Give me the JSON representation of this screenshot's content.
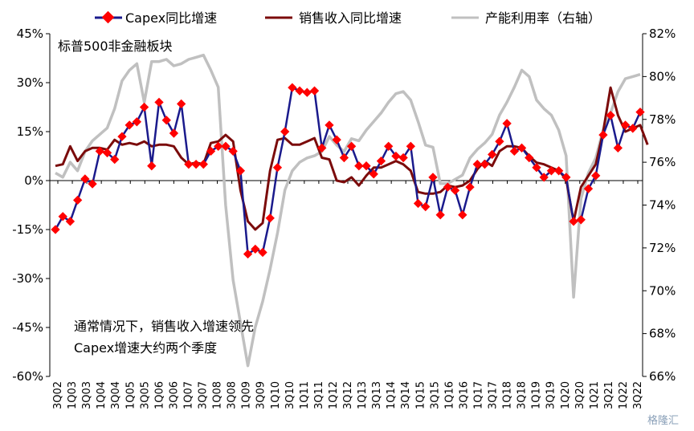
{
  "chart_data": {
    "type": "line",
    "title": "",
    "subtitle": "标普500非金融板块",
    "annotation": [
      "通常情况下，销售收入增速领先",
      "Capex增速大约两个季度"
    ],
    "watermark": "格隆汇",
    "x_tick_labels": [
      "3Q02",
      "1Q03",
      "3Q03",
      "1Q04",
      "3Q04",
      "1Q05",
      "3Q05",
      "1Q06",
      "3Q06",
      "1Q07",
      "3Q07",
      "1Q08",
      "3Q08",
      "1Q09",
      "3Q09",
      "1Q10",
      "3Q10",
      "1Q11",
      "3Q11",
      "1Q12",
      "3Q12",
      "1Q13",
      "3Q13",
      "1Q14",
      "3Q14",
      "1Q15",
      "3Q15",
      "1Q16",
      "3Q16",
      "1Q17",
      "3Q17",
      "1Q18",
      "3Q18",
      "1Q19",
      "3Q19",
      "1Q20",
      "3Q20",
      "1Q21",
      "3Q21",
      "1Q22",
      "3Q22"
    ],
    "y_left": {
      "ticks": [
        "45%",
        "30%",
        "15%",
        "0%",
        "-15%",
        "-30%",
        "-45%",
        "-60%"
      ],
      "ylim": [
        -60,
        45
      ]
    },
    "y_right": {
      "ticks": [
        "82%",
        "80%",
        "78%",
        "76%",
        "74%",
        "72%",
        "70%",
        "68%",
        "66%"
      ],
      "ylim": [
        66,
        82
      ]
    },
    "legend": {
      "placement": "top",
      "entries": [
        "Capex同比增速",
        "销售收入同比增速",
        "产能利用率（右轴）"
      ]
    },
    "colors": {
      "capex_line": "#1a1a8c",
      "capex_marker": "#ff0000",
      "sales": "#7b0b0b",
      "util": "#c0c0c0",
      "axis": "#000000"
    },
    "series": [
      {
        "name": "Capex同比增速",
        "axis": "left",
        "values": [
          -15,
          -11,
          -12.5,
          -6,
          0.5,
          -1,
          9,
          8.5,
          6.5,
          13.5,
          17,
          18,
          22.5,
          4.5,
          24,
          18.5,
          14.5,
          23.5,
          5,
          5,
          5,
          9,
          10.5,
          10.5,
          9,
          3,
          -22.5,
          -21,
          -22,
          -11.5,
          4,
          15,
          28.5,
          27.5,
          27,
          27.5,
          10,
          17,
          12.5,
          7,
          10.5,
          4.5,
          4.5,
          2,
          6,
          10.5,
          7.5,
          7,
          10.5,
          -7,
          -8,
          1,
          -10.5,
          -2,
          -3,
          -10.5,
          -2,
          5,
          5,
          8,
          12,
          17.5,
          9,
          10,
          7,
          4,
          1,
          3,
          3,
          1,
          -12.5,
          -12,
          -2.5,
          1.5,
          14,
          20,
          10,
          17,
          16,
          21
        ]
      },
      {
        "name": "销售收入同比增速",
        "axis": "left",
        "values": [
          4.5,
          5,
          10.5,
          6,
          9,
          10,
          10,
          9.5,
          12.5,
          11,
          11.5,
          11,
          12,
          10.5,
          11,
          11,
          10.5,
          7,
          5,
          5.5,
          5,
          11.5,
          12,
          14,
          12,
          -3,
          -12.5,
          -15,
          -13,
          3,
          12.5,
          13,
          11,
          11,
          12,
          13,
          7,
          6.5,
          0,
          -0.5,
          1,
          -1.5,
          1.5,
          4,
          4,
          5,
          6,
          5,
          3,
          -3.5,
          -4,
          -4,
          -3.5,
          -1.5,
          -2,
          -1.5,
          0,
          3.5,
          6,
          4.5,
          9,
          10.5,
          10.5,
          10,
          7.5,
          5.5,
          5,
          4,
          3,
          0.5,
          -12.5,
          -2,
          1.5,
          5,
          15,
          28.5,
          20,
          15,
          16,
          17,
          11
        ]
      },
      {
        "name": "产能利用率（右轴）",
        "axis": "right",
        "values": [
          75.5,
          75.3,
          76,
          75.6,
          76.5,
          77,
          77.3,
          77.6,
          78.5,
          79.8,
          80.3,
          80.6,
          78.8,
          80.7,
          80.7,
          80.8,
          80.5,
          80.6,
          80.8,
          80.9,
          81,
          80.3,
          79.5,
          74,
          70.5,
          68.5,
          66.5,
          68.3,
          69.5,
          71,
          72.7,
          74.7,
          75.6,
          76,
          76.2,
          76.3,
          76.5,
          77.2,
          76.8,
          76.5,
          77.1,
          77,
          77.5,
          77.9,
          78.3,
          78.8,
          79.2,
          79.3,
          78.9,
          77.9,
          76.8,
          76.7,
          75,
          75,
          75.2,
          75.4,
          76.2,
          76.6,
          76.9,
          77.3,
          78.2,
          78.8,
          79.5,
          80.3,
          80,
          78.9,
          78.5,
          78.2,
          77.5,
          76.3,
          69.7,
          74.3,
          75.5,
          76.2,
          77.5,
          78.3,
          79.3,
          79.9,
          80,
          80.1
        ]
      }
    ]
  }
}
